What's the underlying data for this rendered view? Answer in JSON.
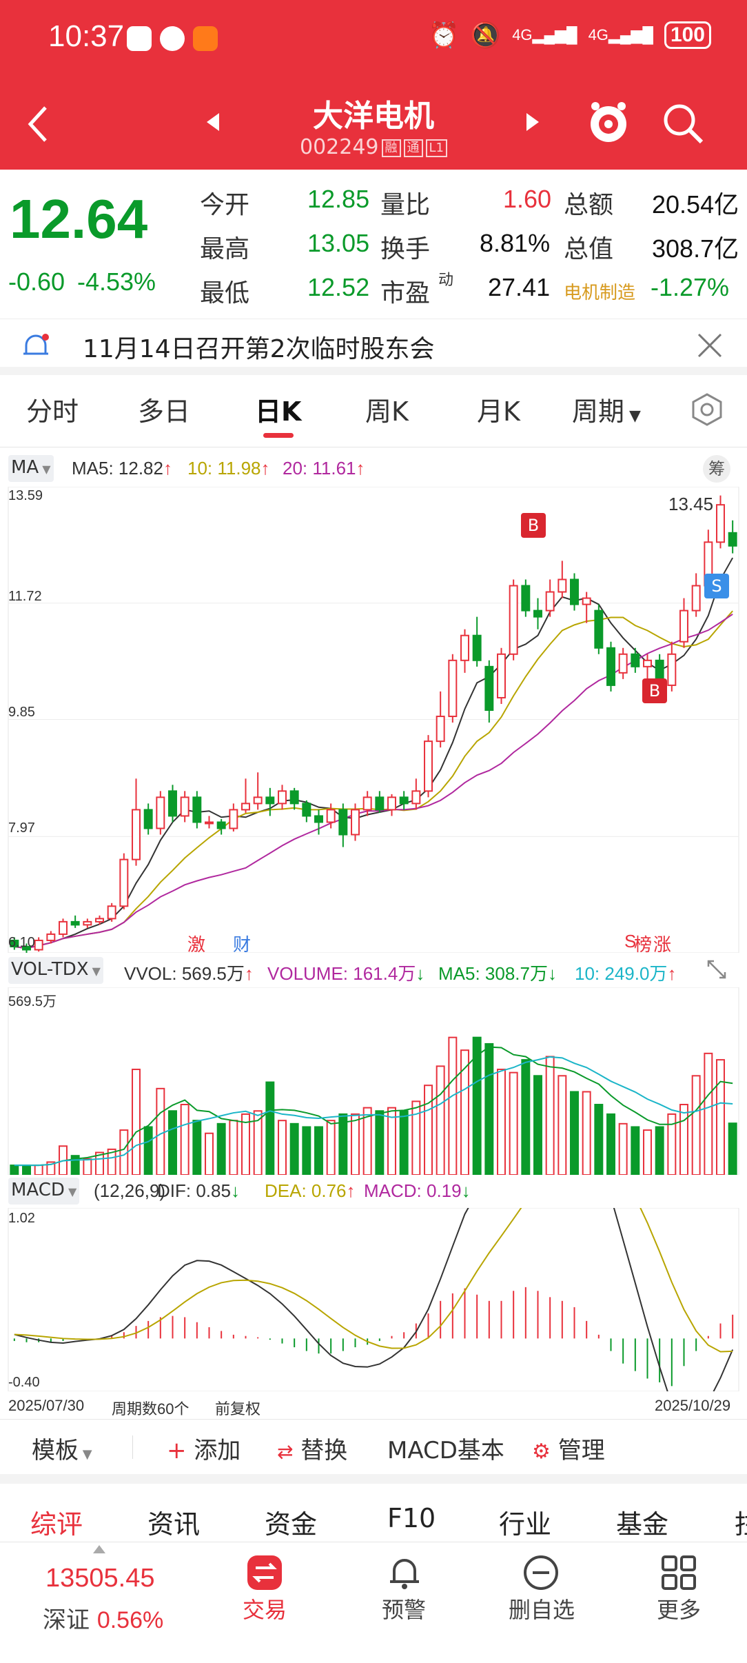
{
  "status_bar": {
    "time": "10:37",
    "network1": "4G",
    "network2": "4G",
    "battery": "100"
  },
  "header": {
    "title": "大洋电机",
    "code": "002249",
    "tags": [
      "融",
      "通",
      "L1"
    ]
  },
  "quote": {
    "price": "12.64",
    "change": "-0.60",
    "change_pct": "-4.53%",
    "rows": [
      [
        {
          "label": "今开",
          "value": "12.85",
          "color": "green"
        },
        {
          "label": "量比",
          "value": "1.60",
          "color": "red"
        },
        {
          "label": "总额",
          "value": "20.54亿",
          "color": "black"
        }
      ],
      [
        {
          "label": "最高",
          "value": "13.05",
          "color": "green"
        },
        {
          "label": "换手",
          "value": "8.81%",
          "color": "black"
        },
        {
          "label": "总值",
          "value": "308.7亿",
          "color": "black"
        }
      ],
      [
        {
          "label": "最低",
          "value": "12.52",
          "color": "green"
        },
        {
          "label": "市盈",
          "value": "27.41",
          "color": "black"
        },
        {
          "label": "电机制造",
          "value": "-1.27%",
          "color": "green"
        }
      ]
    ],
    "pe_sup": "动"
  },
  "notice": {
    "text": "11月14日召开第2次临时股东会"
  },
  "tabs": [
    "分时",
    "多日",
    "日K",
    "周K",
    "月K",
    "周期"
  ],
  "active_tab": "日K",
  "kline": {
    "indicator": "MA",
    "ma5": "MA5: 12.82",
    "ma10": "10: 11.98",
    "ma20": "20: 11.61",
    "y_top": "13.59",
    "y_l1": "11.72",
    "y_l2": "9.85",
    "y_l3": "7.97",
    "y_bot": "6.10",
    "max_label": "13.45",
    "buy_label": "B",
    "sell_label": "S",
    "markers": [
      "激",
      "财",
      "S",
      "榜",
      "涨"
    ],
    "chip_button": "筹"
  },
  "volume": {
    "indicator": "VOL-TDX",
    "vvol": "VVOL: 569.5万",
    "volume": "VOLUME: 161.4万",
    "ma5": "MA5: 308.7万",
    "ma10": "10: 249.0万",
    "y_top": "569.5万"
  },
  "macd": {
    "indicator": "MACD",
    "params": "(12,26,9)",
    "dif": "DIF: 0.85",
    "dea": "DEA: 0.76",
    "macd": "MACD: 0.19",
    "y_top": "1.02",
    "y_bot": "-0.40"
  },
  "footer_axis": {
    "start": "2025/07/30",
    "count": "周期数60个",
    "adjust": "前复权",
    "end": "2025/10/29"
  },
  "toolbar": {
    "template": "模板",
    "add": "添加",
    "replace": "替换",
    "basic": "MACD基本",
    "manage": "管理"
  },
  "subtabs": [
    "综评",
    "资讯",
    "资金",
    "F10",
    "行业",
    "基金",
    "拄"
  ],
  "bottom_nav": {
    "index_value": "13505.45",
    "index_name": "深证",
    "index_pct": "0.56%",
    "items": [
      "交易",
      "预警",
      "删自选",
      "更多"
    ]
  },
  "colors": {
    "brand": "#e8313c",
    "up": "#e8313c",
    "down": "#0a9a2a",
    "ma5": "#333333",
    "ma10": "#b8a500",
    "ma20": "#b0289e",
    "vol_ma10": "#1bb5c8"
  },
  "chart_data": [
    {
      "type": "candlestick",
      "title": "日K",
      "ylim": [
        6.1,
        13.59
      ],
      "ma": {
        "MA5": 12.82,
        "MA10": 11.98,
        "MA20": 11.61
      },
      "candles": [
        [
          6.3,
          6.2,
          6.35,
          6.15
        ],
        [
          6.2,
          6.15,
          6.25,
          6.1
        ],
        [
          6.15,
          6.3,
          6.35,
          6.12
        ],
        [
          6.3,
          6.4,
          6.45,
          6.25
        ],
        [
          6.4,
          6.6,
          6.65,
          6.35
        ],
        [
          6.6,
          6.55,
          6.7,
          6.5
        ],
        [
          6.55,
          6.6,
          6.65,
          6.5
        ],
        [
          6.6,
          6.65,
          6.7,
          6.55
        ],
        [
          6.65,
          6.85,
          6.9,
          6.6
        ],
        [
          6.85,
          7.6,
          7.7,
          6.8
        ],
        [
          7.6,
          8.4,
          8.9,
          7.5
        ],
        [
          8.4,
          8.1,
          8.5,
          8.0
        ],
        [
          8.1,
          8.6,
          8.7,
          8.0
        ],
        [
          8.7,
          8.3,
          8.8,
          8.2
        ],
        [
          8.3,
          8.6,
          8.7,
          8.2
        ],
        [
          8.6,
          8.2,
          8.7,
          8.1
        ],
        [
          8.2,
          8.2,
          8.3,
          8.1
        ],
        [
          8.2,
          8.1,
          8.25,
          8.0
        ],
        [
          8.1,
          8.4,
          8.5,
          8.05
        ],
        [
          8.4,
          8.5,
          8.9,
          8.35
        ],
        [
          8.5,
          8.6,
          9.0,
          8.4
        ],
        [
          8.6,
          8.5,
          8.75,
          8.3
        ],
        [
          8.5,
          8.7,
          8.8,
          8.4
        ],
        [
          8.7,
          8.5,
          8.75,
          8.4
        ],
        [
          8.5,
          8.3,
          8.55,
          8.2
        ],
        [
          8.3,
          8.2,
          8.4,
          8.0
        ],
        [
          8.2,
          8.4,
          8.5,
          8.1
        ],
        [
          8.4,
          8.0,
          8.5,
          7.8
        ],
        [
          8.0,
          8.4,
          8.5,
          7.9
        ],
        [
          8.4,
          8.6,
          8.7,
          8.3
        ],
        [
          8.6,
          8.4,
          8.7,
          8.35
        ],
        [
          8.4,
          8.6,
          8.65,
          8.3
        ],
        [
          8.6,
          8.5,
          8.7,
          8.4
        ],
        [
          8.5,
          8.7,
          8.9,
          8.4
        ],
        [
          8.7,
          9.5,
          9.6,
          8.6
        ],
        [
          9.5,
          9.9,
          10.3,
          9.4
        ],
        [
          9.9,
          10.8,
          10.9,
          9.8
        ],
        [
          10.8,
          11.2,
          11.3,
          10.6
        ],
        [
          11.2,
          10.8,
          11.5,
          10.7
        ],
        [
          10.7,
          10.0,
          10.8,
          9.8
        ],
        [
          10.2,
          10.9,
          11.0,
          10.1
        ],
        [
          10.9,
          12.0,
          12.1,
          10.8
        ],
        [
          12.0,
          11.6,
          12.1,
          11.5
        ],
        [
          11.6,
          11.5,
          11.8,
          11.3
        ],
        [
          11.6,
          11.9,
          12.1,
          11.5
        ],
        [
          11.9,
          12.1,
          12.4,
          11.8
        ],
        [
          12.1,
          11.7,
          12.2,
          11.6
        ],
        [
          11.7,
          11.8,
          11.9,
          11.4
        ],
        [
          11.6,
          11.0,
          11.7,
          10.9
        ],
        [
          11.0,
          10.4,
          11.1,
          10.3
        ],
        [
          10.6,
          10.9,
          11.0,
          10.5
        ],
        [
          10.9,
          10.7,
          11.0,
          10.6
        ],
        [
          10.7,
          10.8,
          10.9,
          10.5
        ],
        [
          10.8,
          10.4,
          10.9,
          10.3
        ],
        [
          10.4,
          10.9,
          11.1,
          10.3
        ],
        [
          11.1,
          11.6,
          11.8,
          11.0
        ],
        [
          11.6,
          12.0,
          12.2,
          11.5
        ],
        [
          12.0,
          12.7,
          12.9,
          11.9
        ],
        [
          12.7,
          13.3,
          13.45,
          12.6
        ],
        [
          12.85,
          12.64,
          13.05,
          12.52
        ]
      ]
    },
    {
      "type": "bar",
      "title": "VOL-TDX",
      "ylim": [
        0,
        569.5
      ],
      "values": [
        30,
        30,
        30,
        40,
        90,
        60,
        50,
        70,
        80,
        140,
        330,
        150,
        270,
        200,
        220,
        170,
        130,
        160,
        170,
        190,
        200,
        290,
        170,
        160,
        150,
        150,
        170,
        190,
        190,
        210,
        200,
        210,
        200,
        230,
        280,
        340,
        430,
        390,
        430,
        410,
        330,
        320,
        360,
        310,
        370,
        310,
        260,
        260,
        220,
        190,
        160,
        150,
        140,
        150,
        190,
        220,
        310,
        380,
        360,
        161.4
      ],
      "ma5": 308.7,
      "ma10": 249.0
    },
    {
      "type": "bar",
      "title": "MACD",
      "ylim": [
        -0.4,
        1.02
      ],
      "values": [
        -0.02,
        -0.03,
        -0.03,
        -0.03,
        -0.02,
        0.0,
        0.0,
        0.0,
        0.02,
        0.05,
        0.1,
        0.14,
        0.17,
        0.18,
        0.17,
        0.13,
        0.09,
        0.06,
        0.03,
        0.02,
        0.01,
        -0.01,
        -0.04,
        -0.07,
        -0.1,
        -0.12,
        -0.12,
        -0.1,
        -0.07,
        -0.05,
        -0.02,
        0.02,
        0.05,
        0.12,
        0.2,
        0.3,
        0.36,
        0.4,
        0.35,
        0.3,
        0.3,
        0.38,
        0.41,
        0.38,
        0.33,
        0.3,
        0.25,
        0.14,
        0.03,
        -0.1,
        -0.2,
        -0.26,
        -0.32,
        -0.35,
        -0.38,
        -0.22,
        -0.1,
        0.02,
        0.12,
        0.19
      ],
      "DIF": 0.85,
      "DEA": 0.76
    }
  ]
}
